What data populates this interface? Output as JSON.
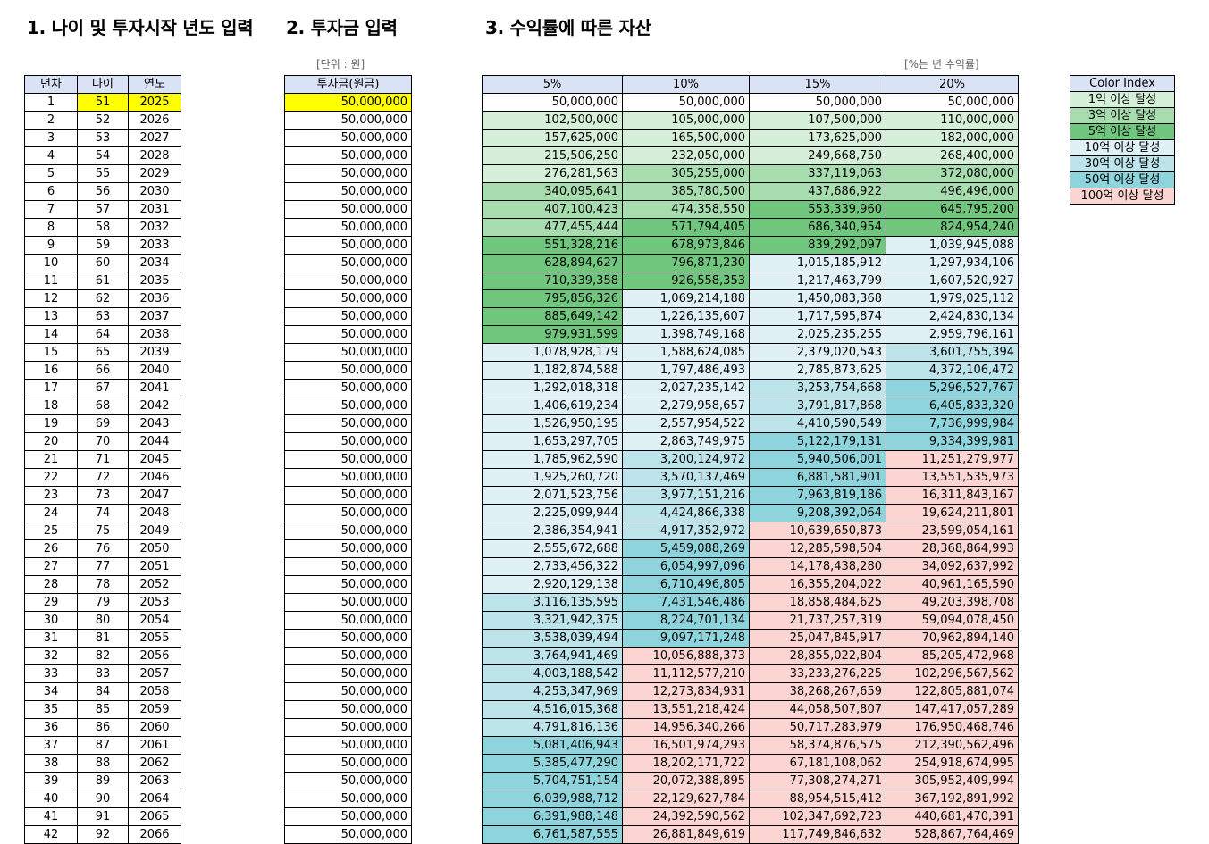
{
  "titles": {
    "t1": "1. 나이 및 투자시작 년도 입력",
    "t2": "2. 투자금 입력",
    "t3": "3. 수익률에 따른 자산"
  },
  "unit_label": "[단위 : 원]",
  "rate_note": "[%는 년 수익률]",
  "colors": {
    "header": "#dae3f5",
    "input_highlight": "#ffff00",
    "tier": [
      "#ffffff",
      "#d6efd8",
      "#a6dcae",
      "#6fc67c",
      "#dff1f5",
      "#bce4ea",
      "#8dd4dc",
      "#fcd5d2"
    ]
  },
  "left_table": {
    "headers": [
      "년차",
      "나이",
      "연도"
    ],
    "rows": [
      [
        "1",
        "51",
        "2025"
      ],
      [
        "2",
        "52",
        "2026"
      ],
      [
        "3",
        "53",
        "2027"
      ],
      [
        "4",
        "54",
        "2028"
      ],
      [
        "5",
        "55",
        "2029"
      ],
      [
        "6",
        "56",
        "2030"
      ],
      [
        "7",
        "57",
        "2031"
      ],
      [
        "8",
        "58",
        "2032"
      ],
      [
        "9",
        "59",
        "2033"
      ],
      [
        "10",
        "60",
        "2034"
      ],
      [
        "11",
        "61",
        "2035"
      ],
      [
        "12",
        "62",
        "2036"
      ],
      [
        "13",
        "63",
        "2037"
      ],
      [
        "14",
        "64",
        "2038"
      ],
      [
        "15",
        "65",
        "2039"
      ],
      [
        "16",
        "66",
        "2040"
      ],
      [
        "17",
        "67",
        "2041"
      ],
      [
        "18",
        "68",
        "2042"
      ],
      [
        "19",
        "69",
        "2043"
      ],
      [
        "20",
        "70",
        "2044"
      ],
      [
        "21",
        "71",
        "2045"
      ],
      [
        "22",
        "72",
        "2046"
      ],
      [
        "23",
        "73",
        "2047"
      ],
      [
        "24",
        "74",
        "2048"
      ],
      [
        "25",
        "75",
        "2049"
      ],
      [
        "26",
        "76",
        "2050"
      ],
      [
        "27",
        "77",
        "2051"
      ],
      [
        "28",
        "78",
        "2052"
      ],
      [
        "29",
        "79",
        "2053"
      ],
      [
        "30",
        "80",
        "2054"
      ],
      [
        "31",
        "81",
        "2055"
      ],
      [
        "32",
        "82",
        "2056"
      ],
      [
        "33",
        "83",
        "2057"
      ],
      [
        "34",
        "84",
        "2058"
      ],
      [
        "35",
        "85",
        "2059"
      ],
      [
        "36",
        "86",
        "2060"
      ],
      [
        "37",
        "87",
        "2061"
      ],
      [
        "38",
        "88",
        "2062"
      ],
      [
        "39",
        "89",
        "2063"
      ],
      [
        "40",
        "90",
        "2064"
      ],
      [
        "41",
        "91",
        "2065"
      ],
      [
        "42",
        "92",
        "2066"
      ]
    ]
  },
  "invest_table": {
    "header": "투자금(원금)",
    "values": [
      "50,000,000",
      "50,000,000",
      "50,000,000",
      "50,000,000",
      "50,000,000",
      "50,000,000",
      "50,000,000",
      "50,000,000",
      "50,000,000",
      "50,000,000",
      "50,000,000",
      "50,000,000",
      "50,000,000",
      "50,000,000",
      "50,000,000",
      "50,000,000",
      "50,000,000",
      "50,000,000",
      "50,000,000",
      "50,000,000",
      "50,000,000",
      "50,000,000",
      "50,000,000",
      "50,000,000",
      "50,000,000",
      "50,000,000",
      "50,000,000",
      "50,000,000",
      "50,000,000",
      "50,000,000",
      "50,000,000",
      "50,000,000",
      "50,000,000",
      "50,000,000",
      "50,000,000",
      "50,000,000",
      "50,000,000",
      "50,000,000",
      "50,000,000",
      "50,000,000",
      "50,000,000",
      "50,000,000"
    ]
  },
  "asset_table": {
    "headers": [
      "5%",
      "10%",
      "15%",
      "20%"
    ],
    "rows": [
      [
        "50,000,000",
        "50,000,000",
        "50,000,000",
        "50,000,000"
      ],
      [
        "102,500,000",
        "105,000,000",
        "107,500,000",
        "110,000,000"
      ],
      [
        "157,625,000",
        "165,500,000",
        "173,625,000",
        "182,000,000"
      ],
      [
        "215,506,250",
        "232,050,000",
        "249,668,750",
        "268,400,000"
      ],
      [
        "276,281,563",
        "305,255,000",
        "337,119,063",
        "372,080,000"
      ],
      [
        "340,095,641",
        "385,780,500",
        "437,686,922",
        "496,496,000"
      ],
      [
        "407,100,423",
        "474,358,550",
        "553,339,960",
        "645,795,200"
      ],
      [
        "477,455,444",
        "571,794,405",
        "686,340,954",
        "824,954,240"
      ],
      [
        "551,328,216",
        "678,973,846",
        "839,292,097",
        "1,039,945,088"
      ],
      [
        "628,894,627",
        "796,871,230",
        "1,015,185,912",
        "1,297,934,106"
      ],
      [
        "710,339,358",
        "926,558,353",
        "1,217,463,799",
        "1,607,520,927"
      ],
      [
        "795,856,326",
        "1,069,214,188",
        "1,450,083,368",
        "1,979,025,112"
      ],
      [
        "885,649,142",
        "1,226,135,607",
        "1,717,595,874",
        "2,424,830,134"
      ],
      [
        "979,931,599",
        "1,398,749,168",
        "2,025,235,255",
        "2,959,796,161"
      ],
      [
        "1,078,928,179",
        "1,588,624,085",
        "2,379,020,543",
        "3,601,755,394"
      ],
      [
        "1,182,874,588",
        "1,797,486,493",
        "2,785,873,625",
        "4,372,106,472"
      ],
      [
        "1,292,018,318",
        "2,027,235,142",
        "3,253,754,668",
        "5,296,527,767"
      ],
      [
        "1,406,619,234",
        "2,279,958,657",
        "3,791,817,868",
        "6,405,833,320"
      ],
      [
        "1,526,950,195",
        "2,557,954,522",
        "4,410,590,549",
        "7,736,999,984"
      ],
      [
        "1,653,297,705",
        "2,863,749,975",
        "5,122,179,131",
        "9,334,399,981"
      ],
      [
        "1,785,962,590",
        "3,200,124,972",
        "5,940,506,001",
        "11,251,279,977"
      ],
      [
        "1,925,260,720",
        "3,570,137,469",
        "6,881,581,901",
        "13,551,535,973"
      ],
      [
        "2,071,523,756",
        "3,977,151,216",
        "7,963,819,186",
        "16,311,843,167"
      ],
      [
        "2,225,099,944",
        "4,424,866,338",
        "9,208,392,064",
        "19,624,211,801"
      ],
      [
        "2,386,354,941",
        "4,917,352,972",
        "10,639,650,873",
        "23,599,054,161"
      ],
      [
        "2,555,672,688",
        "5,459,088,269",
        "12,285,598,504",
        "28,368,864,993"
      ],
      [
        "2,733,456,322",
        "6,054,997,096",
        "14,178,438,280",
        "34,092,637,992"
      ],
      [
        "2,920,129,138",
        "6,710,496,805",
        "16,355,204,022",
        "40,961,165,590"
      ],
      [
        "3,116,135,595",
        "7,431,546,486",
        "18,858,484,625",
        "49,203,398,708"
      ],
      [
        "3,321,942,375",
        "8,224,701,134",
        "21,737,257,319",
        "59,094,078,450"
      ],
      [
        "3,538,039,494",
        "9,097,171,248",
        "25,047,845,917",
        "70,962,894,140"
      ],
      [
        "3,764,941,469",
        "10,056,888,373",
        "28,855,022,804",
        "85,205,472,968"
      ],
      [
        "4,003,188,542",
        "11,112,577,210",
        "33,233,276,225",
        "102,296,567,562"
      ],
      [
        "4,253,347,969",
        "12,273,834,931",
        "38,268,267,659",
        "122,805,881,074"
      ],
      [
        "4,516,015,368",
        "13,551,218,424",
        "44,058,507,807",
        "147,417,057,289"
      ],
      [
        "4,791,816,136",
        "14,956,340,266",
        "50,717,283,979",
        "176,950,468,746"
      ],
      [
        "5,081,406,943",
        "16,501,974,293",
        "58,374,876,575",
        "212,390,562,496"
      ],
      [
        "5,385,477,290",
        "18,202,171,722",
        "67,181,108,062",
        "254,918,674,995"
      ],
      [
        "5,704,751,154",
        "20,072,388,895",
        "77,308,274,271",
        "305,952,409,994"
      ],
      [
        "6,039,988,712",
        "22,129,627,784",
        "88,954,515,412",
        "367,192,891,992"
      ],
      [
        "6,391,988,148",
        "24,392,590,562",
        "102,347,692,723",
        "440,681,470,391"
      ],
      [
        "6,761,587,555",
        "26,881,849,619",
        "117,749,846,632",
        "528,867,764,469"
      ]
    ]
  },
  "legend": {
    "title": "Color Index",
    "items": [
      {
        "label": "1억 이상 달성",
        "color": "#d6efd8"
      },
      {
        "label": "3억 이상 달성",
        "color": "#a6dcae"
      },
      {
        "label": "5억 이상 달성",
        "color": "#6fc67c"
      },
      {
        "label": "10억 이상 달성",
        "color": "#dff1f5"
      },
      {
        "label": "30억 이상 달성",
        "color": "#bce4ea"
      },
      {
        "label": "50억 이상 달성",
        "color": "#8dd4dc"
      },
      {
        "label": "100억 이상 달성",
        "color": "#fcd5d2"
      }
    ]
  }
}
